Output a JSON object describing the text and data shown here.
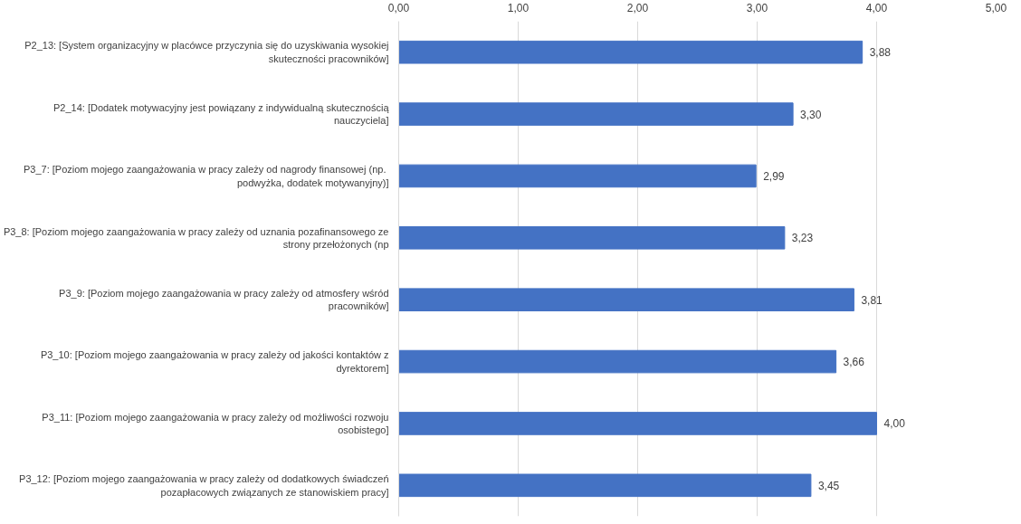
{
  "chart_data": {
    "type": "bar",
    "orientation": "horizontal",
    "categories": [
      "P2_13: [System organizacyjny w placówce przyczynia się do uzyskiwania wysokiej skuteczności pracowników]",
      "P2_14: [Dodatek motywacyjny jest powiązany z indywidualną skutecznością nauczyciela]",
      "P3_7: [Poziom mojego zaangażowania w pracy zależy od nagrody finansowej  (np. podwyżka, dodatek motywanyjny)]",
      "P3_8: [Poziom mojego zaangażowania w pracy zależy od uznania pozafinansowego ze strony przełożonych (np",
      "P3_9: [Poziom mojego zaangażowania w pracy zależy od atmosfery wśród pracowników]",
      "P3_10: [Poziom mojego zaangażowania w pracy zależy od jakości kontaktów z dyrektorem]",
      "P3_11: [Poziom mojego zaangażowania w pracy zależy od możliwości rozwoju osobistego]",
      "P3_12: [Poziom mojego zaangażowania w pracy zależy od dodatkowych świadczeń pozapłacowych związanych ze stanowiskiem pracy]"
    ],
    "values": [
      3.88,
      3.3,
      2.99,
      3.23,
      3.81,
      3.66,
      4.0,
      3.45
    ],
    "value_labels": [
      "3,88",
      "3,30",
      "2,99",
      "3,23",
      "3,81",
      "3,66",
      "4,00",
      "3,45"
    ],
    "color": "#4472c4",
    "xlim": [
      0,
      5
    ],
    "xticks": [
      {
        "value": 0,
        "label": "0,00"
      },
      {
        "value": 1,
        "label": "1,00"
      },
      {
        "value": 2,
        "label": "2,00"
      },
      {
        "value": 3,
        "label": "3,00"
      },
      {
        "value": 4,
        "label": "4,00"
      },
      {
        "value": 5,
        "label": "5,00"
      }
    ],
    "grid": "x"
  }
}
